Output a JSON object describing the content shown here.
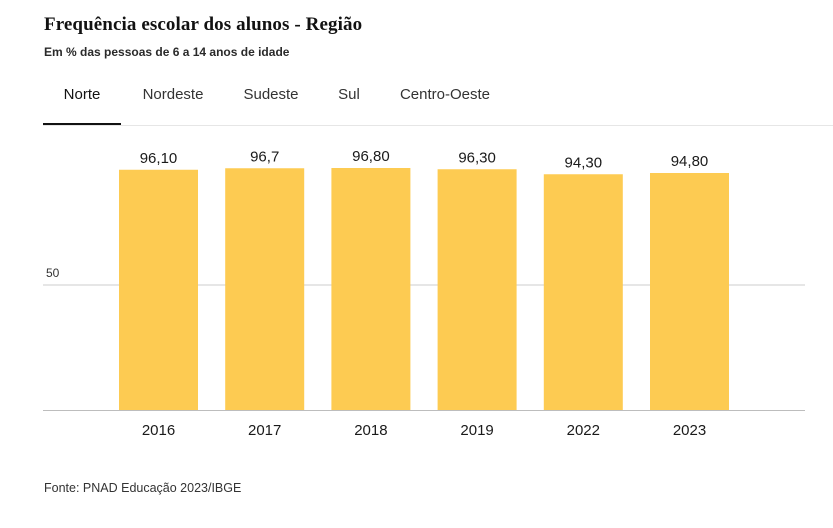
{
  "header": {
    "title": "Frequência escolar dos alunos - Região",
    "subtitle": "Em % das pessoas de 6 a 14 anos de idade"
  },
  "tabs": [
    {
      "label": "Norte",
      "active": true
    },
    {
      "label": "Nordeste",
      "active": false
    },
    {
      "label": "Sudeste",
      "active": false
    },
    {
      "label": "Sul",
      "active": false
    },
    {
      "label": "Centro-Oeste",
      "active": false
    }
  ],
  "chart_data": {
    "type": "bar",
    "title": "Frequência escolar dos alunos - Região",
    "subtitle": "Em % das pessoas de 6 a 14 anos de idade",
    "categories": [
      "2016",
      "2017",
      "2018",
      "2019",
      "2022",
      "2023"
    ],
    "values": [
      96.1,
      96.7,
      96.8,
      96.3,
      94.3,
      94.8
    ],
    "value_labels": [
      "96,10",
      "96,7",
      "96,80",
      "96,30",
      "94,30",
      "94,80"
    ],
    "yticks": [
      {
        "value": 50,
        "label": "50"
      }
    ],
    "ylim": [
      0,
      100
    ],
    "grid": true,
    "xlabel": "",
    "ylabel": "",
    "bar_color": "#FDCB52",
    "gridline_color": "#cccccc"
  },
  "footer": {
    "source": "Fonte: PNAD Educação 2023/IBGE"
  }
}
